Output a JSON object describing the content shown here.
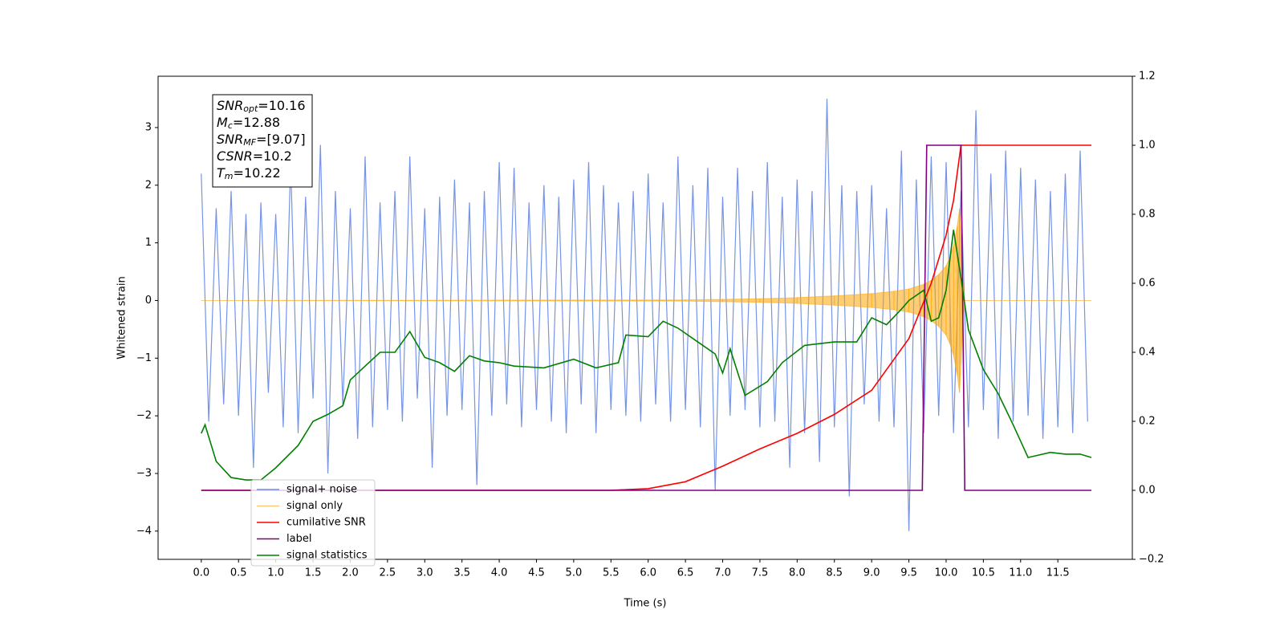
{
  "chart_data": {
    "type": "line",
    "xlabel": "Time (s)",
    "ylabel": "Whitened strain",
    "xlim": [
      -0.58,
      12.5
    ],
    "ylim": [
      -4.49,
      3.89
    ],
    "y2lim": [
      -0.2,
      1.2
    ],
    "xticks": [
      {
        "value": 0,
        "label": "0.0"
      },
      0.5,
      {
        "value": 1,
        "label": "1.0"
      },
      1.5,
      {
        "value": 2,
        "label": "2.0"
      },
      2.5,
      {
        "value": 3,
        "label": "3.0"
      },
      3.5,
      {
        "value": 4,
        "label": "4.0"
      },
      4.5,
      {
        "value": 5,
        "label": "5.0"
      },
      5.5,
      {
        "value": 6,
        "label": "6.0"
      },
      6.5,
      {
        "value": 7,
        "label": "7.0"
      },
      7.5,
      {
        "value": 8,
        "label": "8.0"
      },
      8.5,
      {
        "value": 9,
        "label": "9.0"
      },
      9.5,
      {
        "value": 10,
        "label": "10.0"
      },
      10.5,
      {
        "value": 11,
        "label": "11.0"
      },
      11.5
    ],
    "yticks": [
      {
        "value": -4,
        "label": "−4"
      },
      {
        "value": -3,
        "label": "−3"
      },
      {
        "value": -2,
        "label": "−2"
      },
      {
        "value": -1,
        "label": "−1"
      },
      0,
      1,
      2,
      3
    ],
    "y2ticks": [
      {
        "value": -0.2,
        "label": "−0.2"
      },
      {
        "value": 0,
        "label": "0.0"
      },
      0.2,
      0.4,
      0.6,
      0.8,
      {
        "value": 1,
        "label": "1.0"
      },
      1.2
    ],
    "legend": "lower left",
    "annotation": [
      {
        "symbol": "SNR",
        "sub": "opt",
        "text": "=10.16"
      },
      {
        "symbol": "M",
        "sub": "c",
        "text": "=12.88"
      },
      {
        "symbol": "SNR",
        "sub": "MF",
        "text": "=[9.07]"
      },
      {
        "symbol": "CSNR",
        "sub": null,
        "text": "=10.2"
      },
      {
        "symbol": "T",
        "sub": "m",
        "text": "=10.22"
      }
    ],
    "series": [
      {
        "name": "signal+ noise",
        "color": "#6f8ee6",
        "style": "line",
        "axis": "y",
        "x": [
          0.0,
          0.1,
          0.2,
          0.3,
          0.4,
          0.5,
          0.6,
          0.7,
          0.8,
          0.9,
          1.0,
          1.1,
          1.2,
          1.3,
          1.4,
          1.5,
          1.6,
          1.7,
          1.8,
          1.9,
          2.0,
          2.1,
          2.2,
          2.3,
          2.4,
          2.5,
          2.6,
          2.7,
          2.8,
          2.9,
          3.0,
          3.1,
          3.2,
          3.3,
          3.4,
          3.5,
          3.6,
          3.7,
          3.8,
          3.9,
          4.0,
          4.1,
          4.2,
          4.3,
          4.4,
          4.5,
          4.6,
          4.7,
          4.8,
          4.9,
          5.0,
          5.1,
          5.2,
          5.3,
          5.4,
          5.5,
          5.6,
          5.7,
          5.8,
          5.9,
          6.0,
          6.1,
          6.2,
          6.3,
          6.4,
          6.5,
          6.6,
          6.7,
          6.8,
          6.9,
          7.0,
          7.1,
          7.2,
          7.3,
          7.4,
          7.5,
          7.6,
          7.7,
          7.8,
          7.9,
          8.0,
          8.1,
          8.2,
          8.3,
          8.4,
          8.5,
          8.6,
          8.7,
          8.8,
          8.9,
          9.0,
          9.1,
          9.2,
          9.3,
          9.4,
          9.5,
          9.6,
          9.7,
          9.8,
          9.9,
          10.0,
          10.1,
          10.2,
          10.3,
          10.4,
          10.5,
          10.6,
          10.7,
          10.8,
          10.9,
          11.0,
          11.1,
          11.2,
          11.3,
          11.4,
          11.5,
          11.6,
          11.7,
          11.8,
          11.9
        ],
        "values": [
          2.2,
          -2.1,
          1.6,
          -1.8,
          1.9,
          -2.0,
          1.5,
          -2.9,
          1.7,
          -1.6,
          1.5,
          -2.2,
          2.4,
          -2.3,
          1.8,
          -1.7,
          2.7,
          -3.0,
          1.9,
          -1.8,
          1.6,
          -2.4,
          2.5,
          -2.2,
          1.7,
          -1.9,
          1.9,
          -2.1,
          2.5,
          -1.7,
          1.6,
          -2.9,
          1.8,
          -2.0,
          2.1,
          -1.9,
          1.7,
          -3.2,
          1.9,
          -2.0,
          2.4,
          -1.8,
          2.3,
          -2.2,
          1.7,
          -1.9,
          2.0,
          -2.1,
          1.8,
          -2.3,
          2.1,
          -1.8,
          2.4,
          -2.3,
          2.0,
          -1.9,
          1.7,
          -2.0,
          1.9,
          -2.1,
          2.2,
          -1.8,
          1.7,
          -2.1,
          2.5,
          -1.9,
          2.0,
          -2.2,
          2.3,
          -3.3,
          1.8,
          -2.0,
          2.3,
          -1.9,
          1.9,
          -2.2,
          2.4,
          -2.1,
          1.8,
          -2.9,
          2.1,
          -2.3,
          1.9,
          -2.8,
          3.5,
          -2.2,
          2.0,
          -3.4,
          1.9,
          -1.8,
          2.0,
          -2.1,
          1.6,
          -2.2,
          2.6,
          -4.0,
          2.1,
          -2.3,
          2.5,
          -2.0,
          2.4,
          -2.3,
          1.9,
          -2.2,
          3.3,
          -1.9,
          2.2,
          -2.4,
          2.6,
          -2.1,
          2.3,
          -2.0,
          2.1,
          -2.4,
          1.9,
          -2.2,
          2.2,
          -2.3,
          2.6,
          -2.1
        ]
      },
      {
        "name": "signal only",
        "color": "#ffa500",
        "style": "envelope",
        "axis": "y",
        "x": [
          0,
          6.5,
          7.0,
          7.5,
          8.0,
          8.5,
          9.0,
          9.3,
          9.5,
          9.7,
          9.8,
          9.9,
          10.0,
          10.05,
          10.1,
          10.15,
          10.18,
          10.2,
          10.22,
          10.25,
          11.95
        ],
        "values": [
          0,
          0.01,
          0.02,
          0.03,
          0.05,
          0.08,
          0.12,
          0.16,
          0.2,
          0.28,
          0.35,
          0.45,
          0.6,
          0.75,
          0.95,
          1.3,
          1.6,
          1.1,
          0.4,
          0,
          0
        ]
      },
      {
        "name": "cumilative SNR",
        "color": "#ff0000",
        "style": "line",
        "axis": "y2",
        "x": [
          0,
          5.5,
          6.0,
          6.5,
          7.0,
          7.5,
          8.0,
          8.5,
          9.0,
          9.5,
          9.8,
          10.0,
          10.1,
          10.2,
          11.95
        ],
        "values": [
          0,
          0,
          0.005,
          0.025,
          0.07,
          0.12,
          0.165,
          0.22,
          0.29,
          0.44,
          0.6,
          0.74,
          0.84,
          1.0,
          1.0
        ]
      },
      {
        "name": "label",
        "color": "#800080",
        "style": "line",
        "axis": "y2",
        "x": [
          0,
          9.68,
          9.74,
          10.2,
          10.25,
          11.95
        ],
        "values": [
          0,
          0,
          1,
          1,
          0,
          0
        ]
      },
      {
        "name": "signal statistics",
        "color": "#008000",
        "style": "line",
        "axis": "y2",
        "x": [
          0.0,
          0.05,
          0.2,
          0.4,
          0.6,
          0.8,
          1.0,
          1.3,
          1.5,
          1.7,
          1.9,
          2.0,
          2.2,
          2.4,
          2.6,
          2.8,
          3.0,
          3.2,
          3.4,
          3.6,
          3.8,
          4.0,
          4.2,
          4.6,
          5.0,
          5.3,
          5.6,
          5.7,
          6.0,
          6.2,
          6.4,
          6.6,
          6.9,
          7.0,
          7.1,
          7.3,
          7.6,
          7.8,
          8.1,
          8.5,
          8.8,
          9.0,
          9.2,
          9.4,
          9.5,
          9.7,
          9.8,
          9.9,
          10.0,
          10.1,
          10.2,
          10.3,
          10.5,
          10.7,
          10.9,
          11.1,
          11.2,
          11.4,
          11.6,
          11.8,
          11.95
        ],
        "values": [
          0.165,
          0.19,
          0.084,
          0.037,
          0.03,
          0.03,
          0.065,
          0.13,
          0.2,
          0.22,
          0.245,
          0.32,
          0.36,
          0.4,
          0.4,
          0.46,
          0.385,
          0.37,
          0.345,
          0.39,
          0.375,
          0.37,
          0.36,
          0.355,
          0.38,
          0.355,
          0.37,
          0.45,
          0.445,
          0.49,
          0.47,
          0.44,
          0.395,
          0.34,
          0.41,
          0.275,
          0.315,
          0.37,
          0.42,
          0.43,
          0.43,
          0.5,
          0.48,
          0.525,
          0.55,
          0.58,
          0.49,
          0.5,
          0.58,
          0.755,
          0.615,
          0.465,
          0.35,
          0.28,
          0.19,
          0.095,
          0.1,
          0.11,
          0.105,
          0.105,
          0.095
        ]
      }
    ]
  }
}
